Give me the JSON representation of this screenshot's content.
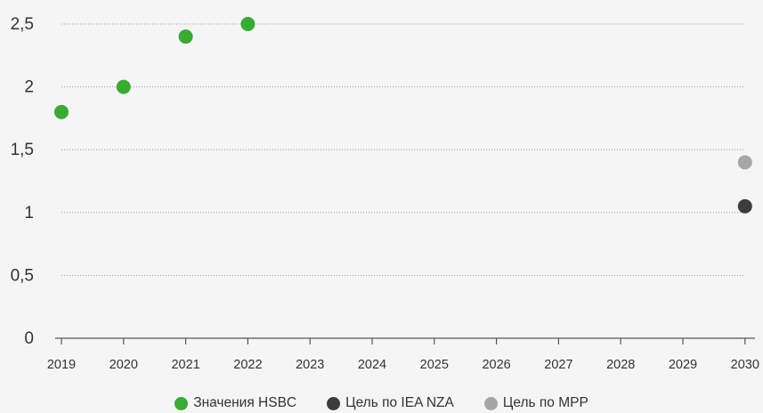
{
  "chart_data": {
    "type": "scatter",
    "title": "",
    "xlabel": "",
    "ylabel": "",
    "x_categories": [
      "2019",
      "2020",
      "2021",
      "2022",
      "2023",
      "2024",
      "2025",
      "2026",
      "2027",
      "2028",
      "2029",
      "2030"
    ],
    "y_ticks": [
      "0",
      "0,5",
      "1",
      "1,5",
      "2",
      "2,5"
    ],
    "ylim": [
      0,
      2.5
    ],
    "grid": "horizontal dotted",
    "legend_position": "bottom-center",
    "series": [
      {
        "name": "Значения HSBC",
        "color": "#3aa935",
        "points": [
          {
            "x": "2019",
            "y": 1.8
          },
          {
            "x": "2020",
            "y": 2.0
          },
          {
            "x": "2021",
            "y": 2.4
          },
          {
            "x": "2022",
            "y": 2.5
          }
        ]
      },
      {
        "name": "Цель по IEA NZA",
        "color": "#3c3c3c",
        "points": [
          {
            "x": "2030",
            "y": 1.05
          }
        ]
      },
      {
        "name": "Цель по MPP",
        "color": "#a6a6a6",
        "points": [
          {
            "x": "2030",
            "y": 1.4
          }
        ]
      }
    ]
  }
}
